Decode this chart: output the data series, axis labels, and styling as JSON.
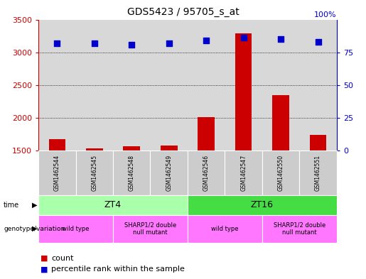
{
  "title": "GDS5423 / 95705_s_at",
  "samples": [
    "GSM1462544",
    "GSM1462545",
    "GSM1462548",
    "GSM1462549",
    "GSM1462546",
    "GSM1462547",
    "GSM1462550",
    "GSM1462551"
  ],
  "counts": [
    1680,
    1540,
    1565,
    1580,
    2010,
    3290,
    2350,
    1740
  ],
  "percentiles": [
    82,
    82,
    81,
    82,
    84,
    86,
    85,
    83
  ],
  "ylim_left": [
    1500,
    3500
  ],
  "ylim_right": [
    0,
    100
  ],
  "yticks_left": [
    1500,
    2000,
    2500,
    3000,
    3500
  ],
  "yticks_right": [
    0,
    25,
    50,
    75,
    100
  ],
  "bar_color": "#cc0000",
  "dot_color": "#0000cc",
  "time_groups": [
    {
      "label": "ZT4",
      "start": 0,
      "end": 3,
      "color": "#aaffaa"
    },
    {
      "label": "ZT16",
      "start": 4,
      "end": 7,
      "color": "#44dd44"
    }
  ],
  "genotype_groups": [
    {
      "label": "wild type",
      "start": 0,
      "end": 1
    },
    {
      "label": "SHARP1/2 double\nnull mutant",
      "start": 2,
      "end": 3
    },
    {
      "label": "wild type",
      "start": 4,
      "end": 5
    },
    {
      "label": "SHARP1/2 double\nnull mutant",
      "start": 6,
      "end": 7
    }
  ],
  "left_axis_color": "#cc0000",
  "right_axis_color": "#0000cc",
  "bar_width": 0.45,
  "dot_size": 40,
  "background_color": "#ffffff",
  "plot_bg_color": "#d8d8d8",
  "sample_bg_color": "#cccccc",
  "genotype_color": "#ff77ff"
}
